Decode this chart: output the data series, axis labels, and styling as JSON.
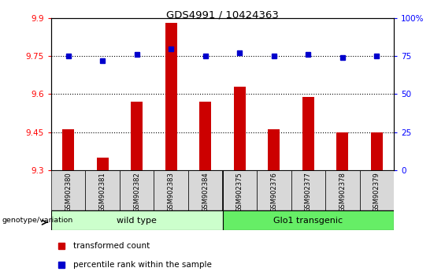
{
  "title": "GDS4991 / 10424363",
  "samples": [
    "GSM902380",
    "GSM902381",
    "GSM902382",
    "GSM902383",
    "GSM902384",
    "GSM902375",
    "GSM902376",
    "GSM902377",
    "GSM902378",
    "GSM902379"
  ],
  "transformed_counts": [
    9.46,
    9.35,
    9.57,
    9.88,
    9.57,
    9.63,
    9.46,
    9.59,
    9.45,
    9.45
  ],
  "percentile_ranks": [
    75,
    72,
    76,
    80,
    75,
    77,
    75,
    76,
    74,
    75
  ],
  "ylim_left": [
    9.3,
    9.9
  ],
  "ylim_right": [
    0,
    100
  ],
  "yticks_left": [
    9.3,
    9.45,
    9.6,
    9.75,
    9.9
  ],
  "yticks_right": [
    0,
    25,
    50,
    75,
    100
  ],
  "hlines": [
    9.45,
    9.6,
    9.75
  ],
  "bar_color": "#cc0000",
  "dot_color": "#0000cc",
  "wild_type_count": 5,
  "wild_type_label": "wild type",
  "transgenic_label": "Glo1 transgenic",
  "genotype_label": "genotype/variation",
  "legend_bar_label": "transformed count",
  "legend_dot_label": "percentile rank within the sample",
  "wild_type_color": "#ccffcc",
  "transgenic_color": "#66ee66",
  "sample_box_color": "#d8d8d8",
  "bar_width": 0.35
}
